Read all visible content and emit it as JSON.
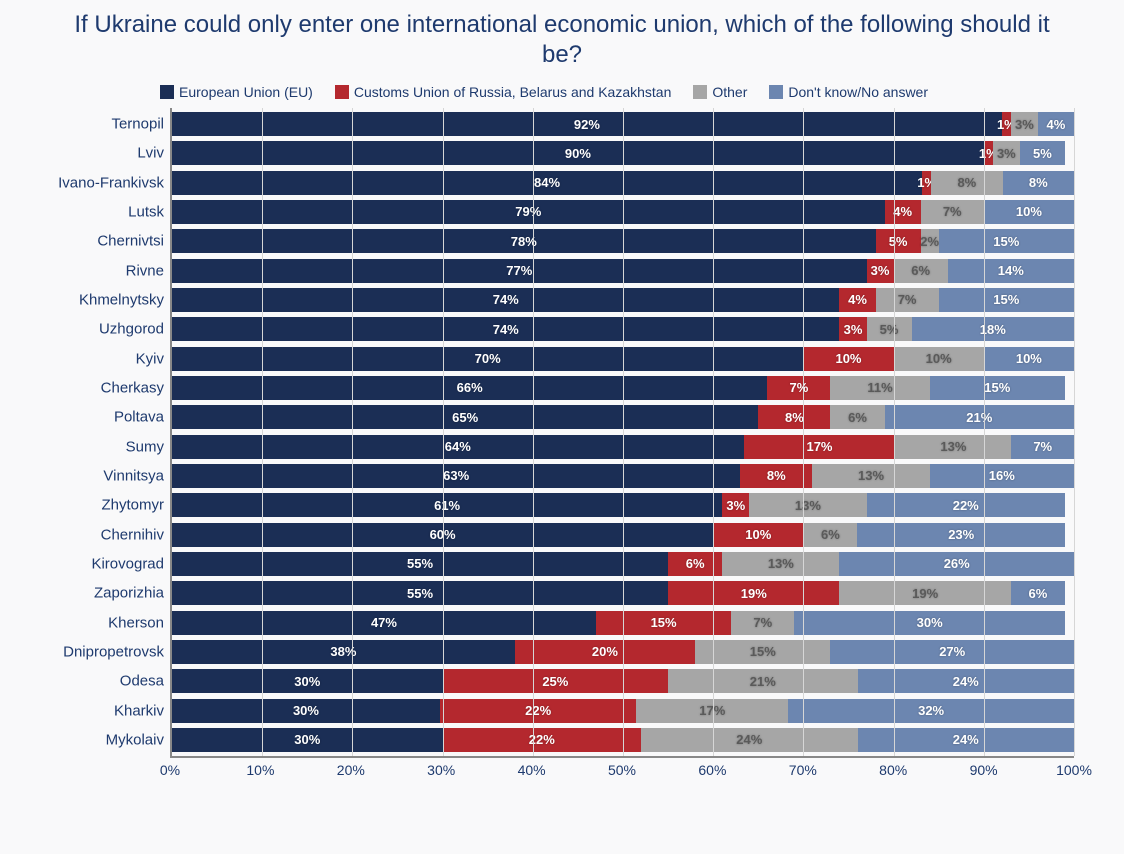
{
  "title": "If Ukraine could only enter one international economic union, which of the following should it be?",
  "chart": {
    "type": "stacked-horizontal-bar",
    "background_color": "#f9f9fa",
    "text_color": "#1e3a6e",
    "title_fontsize": 24,
    "label_fontsize": 15,
    "value_fontsize": 13,
    "grid_color": "#d6d6d6",
    "axis_color": "#888888",
    "xlim": [
      0,
      100
    ],
    "xtick_step": 10,
    "xticks": [
      "0%",
      "10%",
      "20%",
      "30%",
      "40%",
      "50%",
      "60%",
      "70%",
      "80%",
      "90%",
      "100%"
    ],
    "series": [
      {
        "key": "eu",
        "label": "European Union (EU)",
        "color": "#1b2e55"
      },
      {
        "key": "cu",
        "label": "Customs Union of Russia, Belarus and Kazakhstan",
        "color": "#b4282e"
      },
      {
        "key": "other",
        "label": "Other",
        "color": "#a6a6a6"
      },
      {
        "key": "dk",
        "label": "Don't know/No answer",
        "color": "#6c86b0"
      }
    ],
    "rows": [
      {
        "label": "Ternopil",
        "values": {
          "eu": 92,
          "cu": 1,
          "other": 3,
          "dk": 4
        }
      },
      {
        "label": "Lviv",
        "values": {
          "eu": 90,
          "cu": 1,
          "other": 3,
          "dk": 5
        }
      },
      {
        "label": "Ivano-Frankivsk",
        "values": {
          "eu": 84,
          "cu": 1,
          "other": 8,
          "dk": 8
        }
      },
      {
        "label": "Lutsk",
        "values": {
          "eu": 79,
          "cu": 4,
          "other": 7,
          "dk": 10
        }
      },
      {
        "label": "Chernivtsi",
        "values": {
          "eu": 78,
          "cu": 5,
          "other": 2,
          "dk": 15
        }
      },
      {
        "label": "Rivne",
        "values": {
          "eu": 77,
          "cu": 3,
          "other": 6,
          "dk": 14
        }
      },
      {
        "label": "Khmelnytsky",
        "values": {
          "eu": 74,
          "cu": 4,
          "other": 7,
          "dk": 15
        }
      },
      {
        "label": "Uzhgorod",
        "values": {
          "eu": 74,
          "cu": 3,
          "other": 5,
          "dk": 18
        }
      },
      {
        "label": "Kyiv",
        "values": {
          "eu": 70,
          "cu": 10,
          "other": 10,
          "dk": 10
        }
      },
      {
        "label": "Cherkasy",
        "values": {
          "eu": 66,
          "cu": 7,
          "other": 11,
          "dk": 15
        }
      },
      {
        "label": "Poltava",
        "values": {
          "eu": 65,
          "cu": 8,
          "other": 6,
          "dk": 21
        }
      },
      {
        "label": "Sumy",
        "values": {
          "eu": 64,
          "cu": 17,
          "other": 13,
          "dk": 7
        }
      },
      {
        "label": "Vinnitsya",
        "values": {
          "eu": 63,
          "cu": 8,
          "other": 13,
          "dk": 16
        }
      },
      {
        "label": "Zhytomyr",
        "values": {
          "eu": 61,
          "cu": 3,
          "other": 13,
          "dk": 22
        }
      },
      {
        "label": "Chernihiv",
        "values": {
          "eu": 60,
          "cu": 10,
          "other": 6,
          "dk": 23
        }
      },
      {
        "label": "Kirovograd",
        "values": {
          "eu": 55,
          "cu": 6,
          "other": 13,
          "dk": 26
        }
      },
      {
        "label": "Zaporizhia",
        "values": {
          "eu": 55,
          "cu": 19,
          "other": 19,
          "dk": 6
        }
      },
      {
        "label": "Kherson",
        "values": {
          "eu": 47,
          "cu": 15,
          "other": 7,
          "dk": 30
        }
      },
      {
        "label": "Dnipropetrovsk",
        "values": {
          "eu": 38,
          "cu": 20,
          "other": 15,
          "dk": 27
        }
      },
      {
        "label": "Odesa",
        "values": {
          "eu": 30,
          "cu": 25,
          "other": 21,
          "dk": 24
        }
      },
      {
        "label": "Kharkiv",
        "values": {
          "eu": 30,
          "cu": 22,
          "other": 17,
          "dk": 32
        }
      },
      {
        "label": "Mykolaiv",
        "values": {
          "eu": 30,
          "cu": 22,
          "other": 24,
          "dk": 24
        }
      }
    ]
  }
}
